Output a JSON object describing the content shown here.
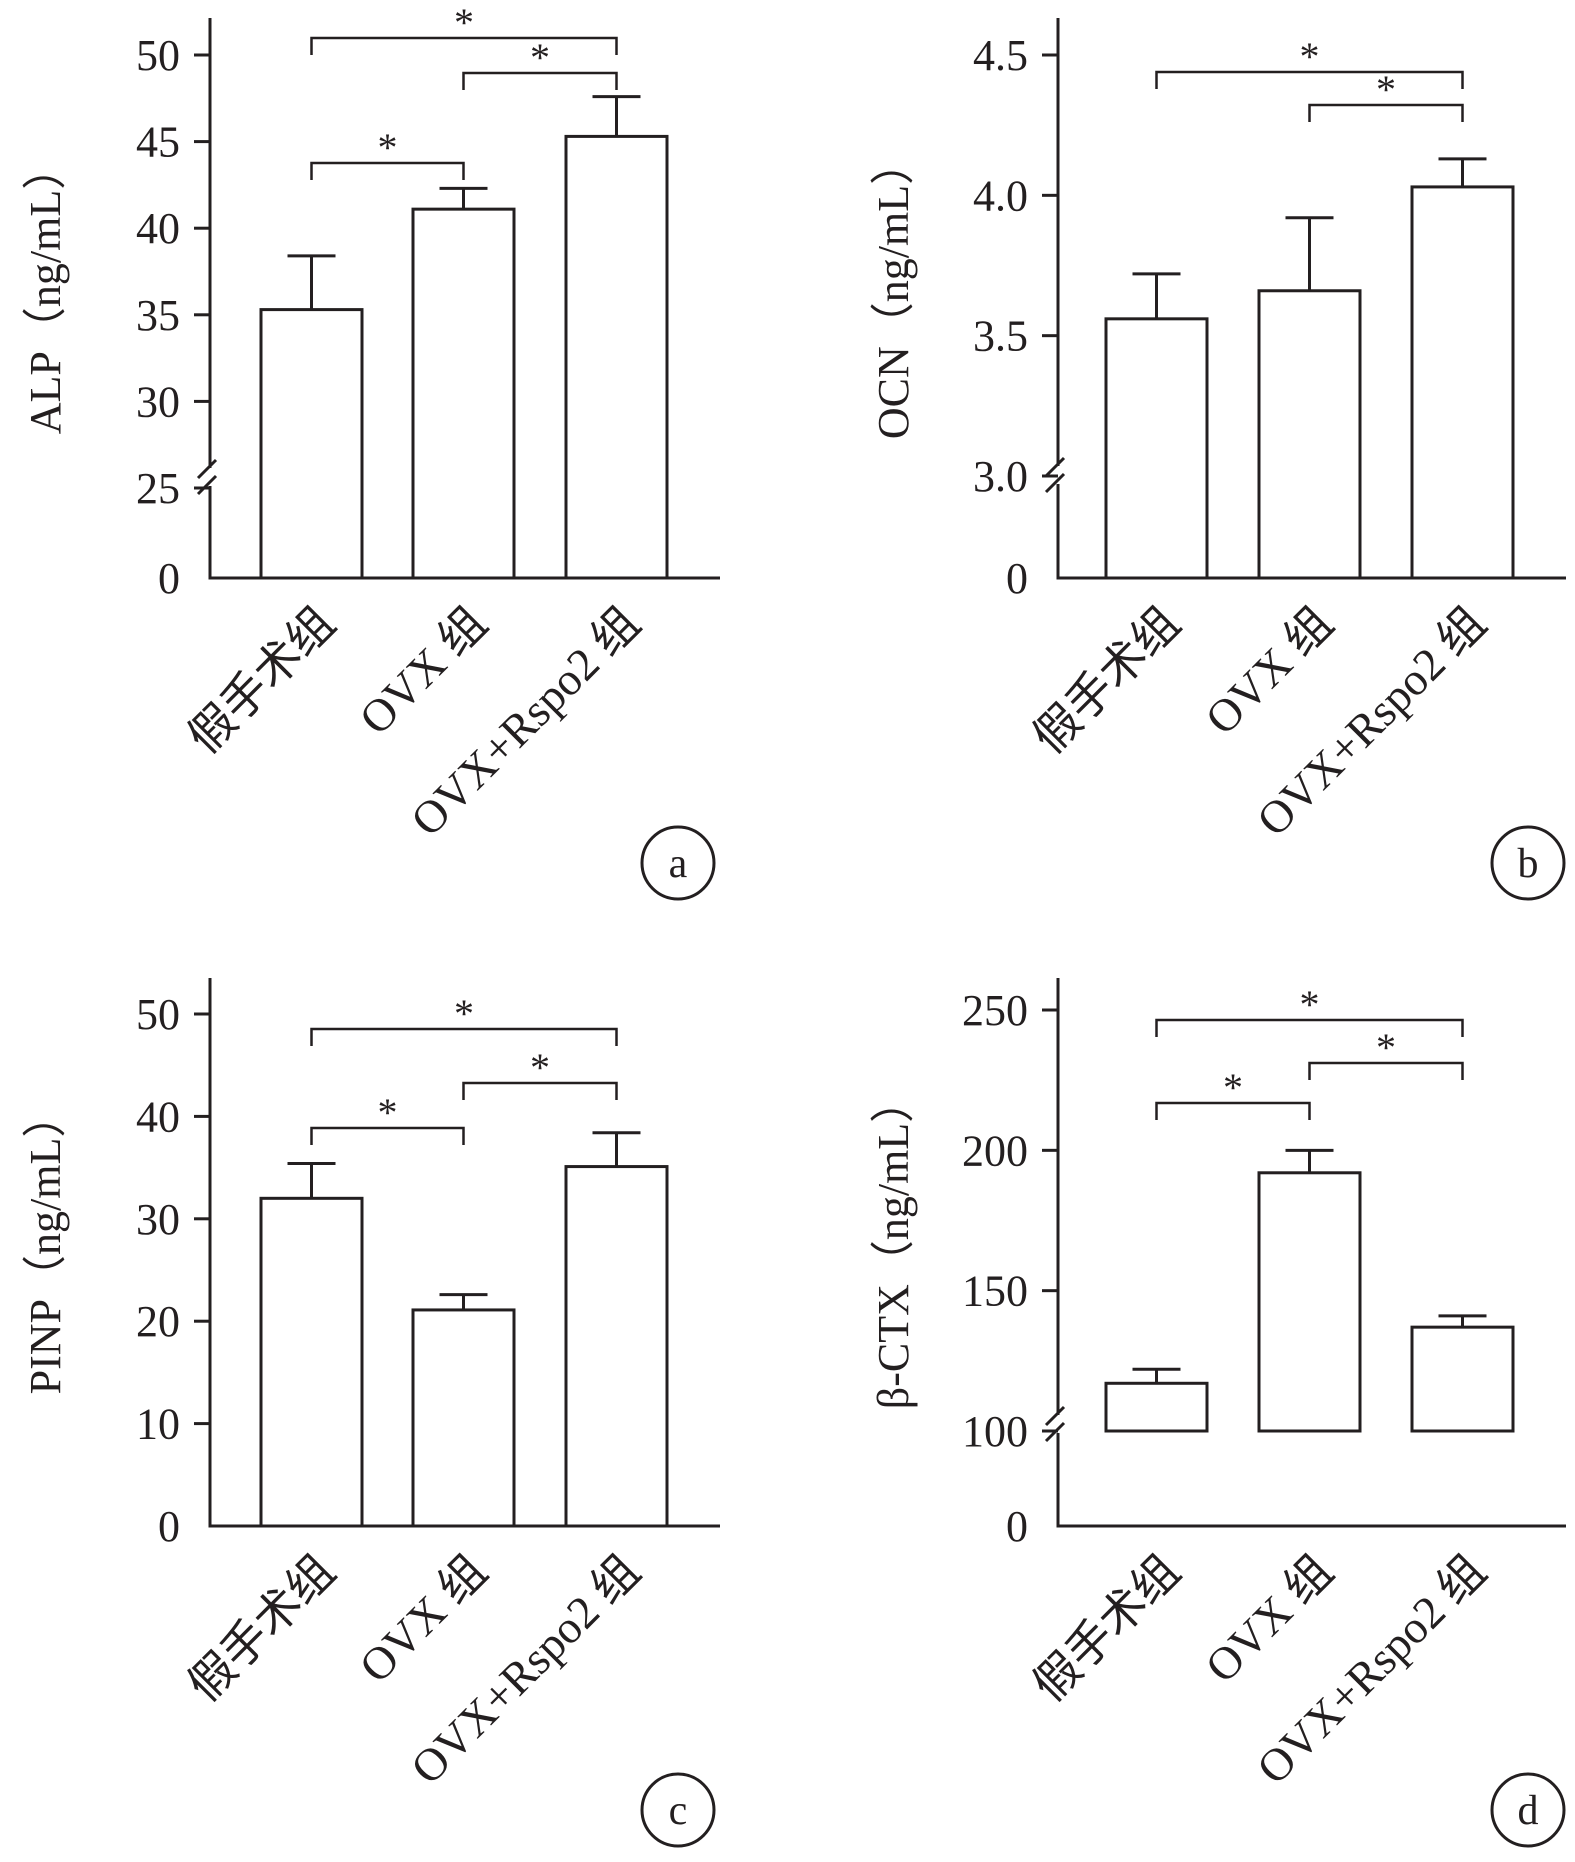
{
  "figure": {
    "ink_color": "#231f20",
    "bar_fill": "#ffffff"
  },
  "chart_data": [
    {
      "panel_label": "a",
      "type": "bar",
      "ylabel": "ALP（ng/mL）",
      "categories": [
        "假手术组",
        "OVX 组",
        "OVX+Rspo2 组"
      ],
      "values": [
        35.3,
        41.1,
        45.3
      ],
      "error": [
        3.1,
        1.2,
        2.3
      ],
      "yticks": [
        0,
        25,
        30,
        35,
        40,
        45,
        50
      ],
      "ylim": [
        25,
        52
      ],
      "axis_break": true,
      "significance": [
        {
          "from": 0,
          "to": 1,
          "label": "*"
        },
        {
          "from": 1,
          "to": 2,
          "label": "*"
        },
        {
          "from": 0,
          "to": 2,
          "label": "*"
        }
      ]
    },
    {
      "panel_label": "b",
      "type": "bar",
      "ylabel": "OCN（ng/mL）",
      "categories": [
        "假手术组",
        "OVX 组",
        "OVX+Rspo2 组"
      ],
      "values": [
        3.56,
        3.66,
        4.03
      ],
      "error": [
        0.16,
        0.26,
        0.1
      ],
      "yticks": [
        0,
        3.0,
        3.5,
        4.0,
        4.5
      ],
      "ytick_labels": [
        "0",
        "3.0",
        "3.5",
        "4.0",
        "4.5"
      ],
      "ylim": [
        3.0,
        4.65
      ],
      "axis_break": true,
      "significance": [
        {
          "from": 1,
          "to": 2,
          "label": "*"
        },
        {
          "from": 0,
          "to": 2,
          "label": "*"
        }
      ]
    },
    {
      "panel_label": "c",
      "type": "bar",
      "ylabel": "PINP（ng/mL）",
      "categories": [
        "假手术组",
        "OVX 组",
        "OVX+Rspo2 组"
      ],
      "values": [
        32.0,
        21.1,
        35.1
      ],
      "error": [
        3.4,
        1.5,
        3.3
      ],
      "yticks": [
        0,
        10,
        20,
        30,
        40,
        50
      ],
      "ylim": [
        0,
        54
      ],
      "axis_break": false,
      "significance": [
        {
          "from": 0,
          "to": 1,
          "label": "*"
        },
        {
          "from": 1,
          "to": 2,
          "label": "*"
        },
        {
          "from": 0,
          "to": 2,
          "label": "*"
        }
      ]
    },
    {
      "panel_label": "d",
      "type": "bar",
      "ylabel": "β-CTX（ng/mL）",
      "categories": [
        "假手术组",
        "OVX 组",
        "OVX+Rspo2 组"
      ],
      "values": [
        117,
        192,
        137
      ],
      "error": [
        5,
        8,
        4
      ],
      "yticks": [
        0,
        100,
        150,
        200,
        250
      ],
      "ylim": [
        100,
        261
      ],
      "axis_break": true,
      "significance": [
        {
          "from": 0,
          "to": 1,
          "label": "*"
        },
        {
          "from": 1,
          "to": 2,
          "label": "*"
        },
        {
          "from": 0,
          "to": 2,
          "label": "*"
        }
      ]
    }
  ]
}
